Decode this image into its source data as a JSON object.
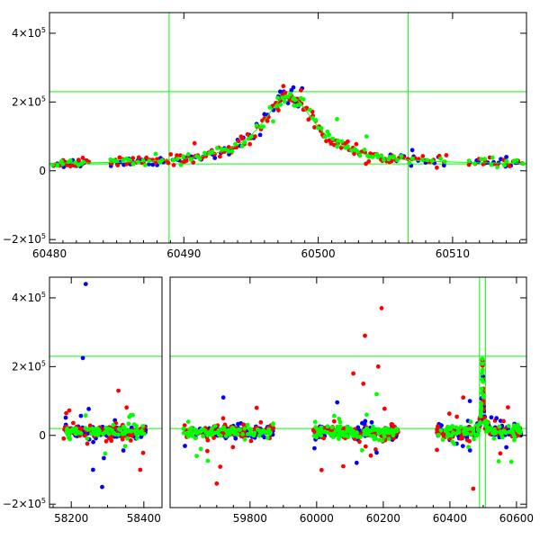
{
  "chart_data": [
    {
      "type": "scatter",
      "panel": "top",
      "xlim": [
        60480,
        60515.5
      ],
      "ylim": [
        -210000,
        460000
      ],
      "xticks": [
        {
          "v": 60480,
          "label": "60480"
        },
        {
          "v": 60490,
          "label": "60490"
        },
        {
          "v": 60500,
          "label": "60500"
        },
        {
          "v": 60510,
          "label": "60510"
        }
      ],
      "yticks": [
        {
          "v": -200000,
          "base": "−2×10",
          "exp": "5"
        },
        {
          "v": 0,
          "base": "0",
          "exp": ""
        },
        {
          "v": 200000,
          "base": "2×10",
          "exp": "5"
        },
        {
          "v": 400000,
          "base": "4×10",
          "exp": "5"
        }
      ],
      "hlines": [
        230000,
        20000
      ],
      "vlines": [
        60488.9,
        60506.7
      ],
      "model_curve": {
        "t0": 60497.8,
        "tE": 2.4,
        "peak": 220000,
        "baseline": 18000
      },
      "colors": [
        "#0000ff",
        "#ff0000",
        "#00ff00"
      ],
      "series": [
        {
          "color": "#0000ff",
          "segments": [
            [
              60480.2,
              60482.8,
              14
            ],
            [
              60484.4,
              60488.6,
              16
            ],
            [
              60489.0,
              60496.8,
              26
            ],
            [
              60497.0,
              60498.6,
              12
            ],
            [
              60505.2,
              60509.5,
              12
            ],
            [
              60511.2,
              60515.2,
              12
            ]
          ],
          "extra": [
            [
              60494.0,
              90000
            ],
            [
              60507.0,
              60000
            ],
            [
              60514.0,
              40000
            ],
            [
              60498.8,
              240000
            ],
            [
              60497.2,
              205000
            ]
          ]
        },
        {
          "color": "#ff0000",
          "segments": [
            [
              60480.2,
              60483.0,
              16
            ],
            [
              60484.4,
              60488.8,
              22
            ],
            [
              60488.8,
              60496.8,
              48
            ],
            [
              60496.8,
              60499.2,
              26
            ],
            [
              60499.2,
              60505.8,
              44
            ],
            [
              60506.0,
              60509.8,
              14
            ],
            [
              60511.2,
              60515.4,
              14
            ]
          ],
          "extra": [
            [
              60490.8,
              80000
            ],
            [
              60499.6,
              160000
            ],
            [
              60502.2,
              85000
            ],
            [
              60495.3,
              100000
            ],
            [
              60509.0,
              40000
            ]
          ]
        },
        {
          "color": "#00ff00",
          "segments": [
            [
              60480.2,
              60482.8,
              10
            ],
            [
              60484.4,
              60488.6,
              14
            ],
            [
              60489.0,
              60496.8,
              26
            ],
            [
              60496.8,
              60499.0,
              14
            ],
            [
              60499.2,
              60506.0,
              30
            ],
            [
              60506.0,
              60509.8,
              8
            ],
            [
              60511.2,
              60515.4,
              12
            ]
          ],
          "extra": [
            [
              60501.4,
              150000
            ],
            [
              60498.2,
              190000
            ],
            [
              60503.6,
              100000
            ]
          ]
        }
      ]
    },
    {
      "type": "scatter",
      "panel": "bottom",
      "xlim_left": [
        58140,
        58450
      ],
      "xlim_right": [
        59560,
        60630
      ],
      "ylim": [
        -210000,
        460000
      ],
      "xticks": [
        {
          "v": 58200,
          "label": "58200"
        },
        {
          "v": 58400,
          "label": "58400"
        },
        {
          "v": 59800,
          "label": "59800"
        },
        {
          "v": 60000,
          "label": "60000"
        },
        {
          "v": 60200,
          "label": "60200"
        },
        {
          "v": 60400,
          "label": "60400"
        },
        {
          "v": 60600,
          "label": "60600"
        }
      ],
      "yticks": [
        {
          "v": -200000,
          "base": "−2×10",
          "exp": "5"
        },
        {
          "v": 0,
          "base": "0",
          "exp": ""
        },
        {
          "v": 200000,
          "base": "2×10",
          "exp": "5"
        },
        {
          "v": 400000,
          "base": "4×10",
          "exp": "5"
        }
      ],
      "hlines": [
        230000,
        20000
      ],
      "vlines": [
        60488.9,
        60506.7
      ],
      "clusters": [
        {
          "x0": 58175,
          "x1": 58405,
          "n": 90
        },
        {
          "x0": 59600,
          "x1": 59870,
          "n": 90
        },
        {
          "x0": 59990,
          "x1": 60245,
          "n": 110
        },
        {
          "x0": 60360,
          "x1": 60480,
          "n": 50
        },
        {
          "x0": 60520,
          "x1": 60615,
          "n": 40
        }
      ],
      "outliers": [
        {
          "color": "#0000ff",
          "pts": [
            [
              58240,
              440000
            ],
            [
              58232,
              225000
            ],
            [
              58285,
              -150000
            ],
            [
              58260,
              -100000
            ],
            [
              59720,
              110000
            ],
            [
              60120,
              -80000
            ],
            [
              60460,
              100000
            ],
            [
              60540,
              50000
            ],
            [
              60180,
              -50000
            ]
          ]
        },
        {
          "color": "#ff0000",
          "pts": [
            [
              60195,
              370000
            ],
            [
              60145,
              290000
            ],
            [
              60110,
              180000
            ],
            [
              60185,
              200000
            ],
            [
              60470,
              -155000
            ],
            [
              60440,
              110000
            ],
            [
              59700,
              -140000
            ],
            [
              60080,
              -90000
            ],
            [
              58330,
              130000
            ],
            [
              58390,
              -100000
            ],
            [
              59820,
              80000
            ],
            [
              60140,
              150000
            ]
          ]
        },
        {
          "color": "#00ff00",
          "pts": [
            [
              60180,
              120000
            ],
            [
              59640,
              -60000
            ],
            [
              60150,
              60000
            ]
          ]
        }
      ],
      "peak": {
        "t0": 60497.8,
        "tE": 2.4,
        "peak": 220000,
        "baseline": 18000
      }
    }
  ]
}
